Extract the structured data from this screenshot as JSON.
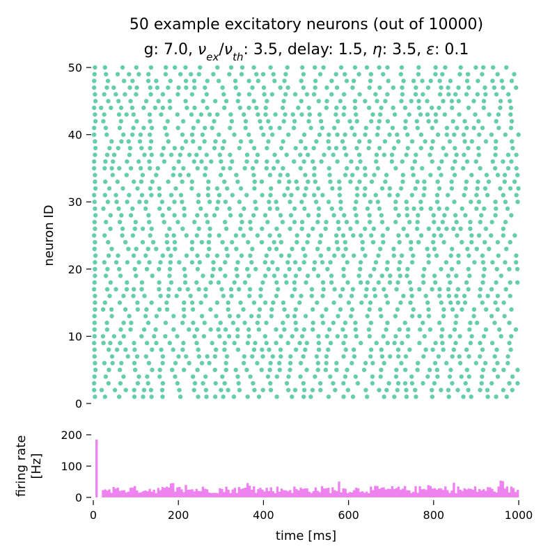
{
  "figure": {
    "title_line1": "50 example excitatory neurons (out of 10000)",
    "title_line2_parts": [
      {
        "t": "g: 7.0, "
      },
      {
        "t": "ν",
        "italic": true
      },
      {
        "t": "ex",
        "italic": true,
        "sub": true
      },
      {
        "t": "/"
      },
      {
        "t": "ν",
        "italic": true
      },
      {
        "t": "th",
        "italic": true,
        "sub": true
      },
      {
        "t": ": 3.5, delay: 1.5, "
      },
      {
        "t": "η",
        "italic": true
      },
      {
        "t": ": 3.5, "
      },
      {
        "t": "ε",
        "italic": true
      },
      {
        "t": ": 0.1"
      }
    ]
  },
  "chart_data": [
    {
      "type": "scatter",
      "name": "raster",
      "ylabel": "neuron ID",
      "xlim": [
        0,
        1000
      ],
      "ylim": [
        0,
        50
      ],
      "yticks": [
        0,
        10,
        20,
        30,
        40,
        50
      ],
      "xticks_shown": false,
      "color": "#66cdaa",
      "grid": false,
      "neuron_count": 50,
      "spike_window_ms": [
        0,
        1000
      ],
      "first_spike_ms": [
        6,
        1
      ],
      "mean_isi_ms": 29,
      "notes": "spike trains shown as dots; one row per neuron ID 1..50"
    },
    {
      "type": "bar",
      "name": "firing-rate",
      "ylabel_lines": [
        "firing rate",
        "[Hz]"
      ],
      "xlabel": "time [ms]",
      "xlim": [
        0,
        1000
      ],
      "ylim": [
        0,
        200
      ],
      "xticks": [
        0,
        200,
        400,
        600,
        800,
        1000
      ],
      "yticks": [
        0,
        100,
        200
      ],
      "bin_ms": 5,
      "color": "#ee82ee",
      "onset_peak_hz": 185,
      "onset_time_ms": 5,
      "silent_until_ms": 20,
      "baseline_hz": 25,
      "max_other_hz": 55
    }
  ]
}
